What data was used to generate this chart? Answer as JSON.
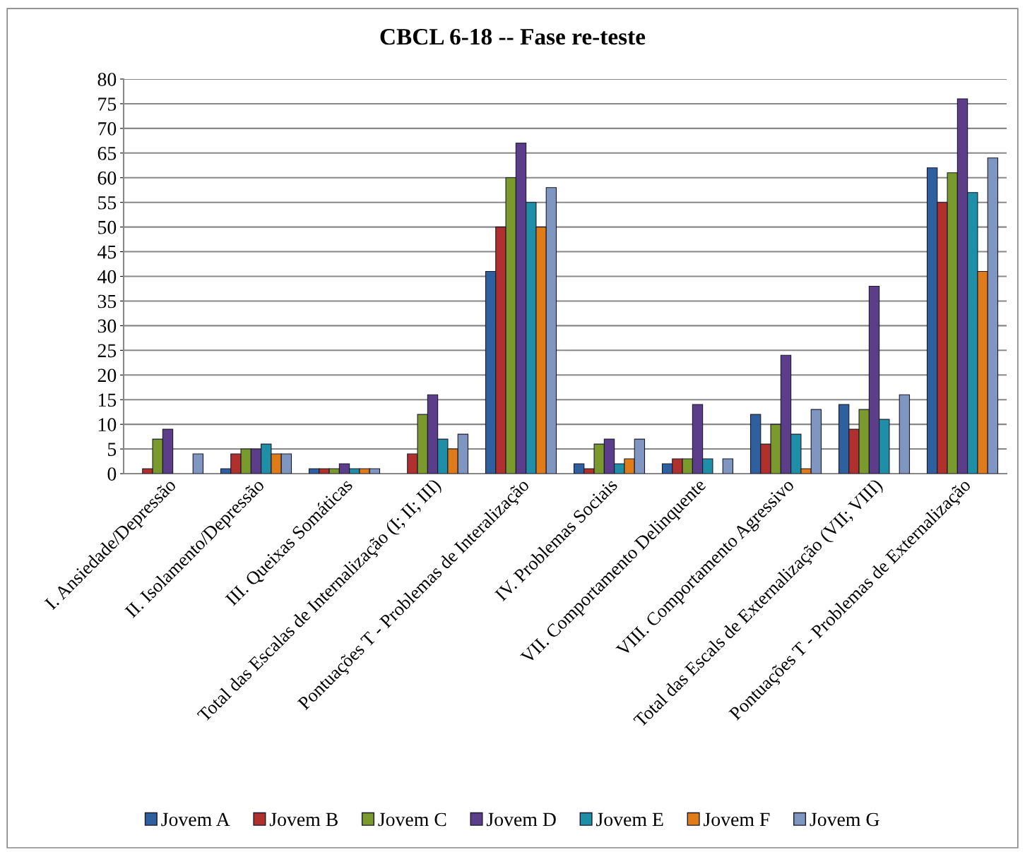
{
  "chart_data": {
    "type": "bar",
    "title": "CBCL 6-18 -- Fase re-teste",
    "categories": [
      "I. Ansiedade/Depressão",
      "II. Isolamento/Depressão",
      "III. Queixas Somáticas",
      "Total das Escalas de Internalização (I; II; III)",
      "Pontuações T - Problemas de Interalização",
      "IV. Problemas Sociais",
      "VII. Comportamento Delinquente",
      "VIII. Comportamento Agressivo",
      "Total das Escals de Externalização (VII; VIII)",
      "Pontuações T - Problemas de Externalização"
    ],
    "series": [
      {
        "name": "Jovem A",
        "color": "#2e5f9e",
        "values": [
          null,
          1,
          1,
          null,
          41,
          2,
          2,
          12,
          14,
          62
        ]
      },
      {
        "name": "Jovem B",
        "color": "#b0302e",
        "values": [
          1,
          4,
          1,
          4,
          50,
          1,
          3,
          6,
          9,
          55
        ]
      },
      {
        "name": "Jovem C",
        "color": "#7a9a2e",
        "values": [
          7,
          5,
          1,
          12,
          60,
          6,
          3,
          10,
          13,
          61
        ]
      },
      {
        "name": "Jovem D",
        "color": "#5c3d8a",
        "values": [
          9,
          5,
          2,
          16,
          67,
          7,
          14,
          24,
          38,
          76
        ]
      },
      {
        "name": "Jovem E",
        "color": "#1f8fa8",
        "values": [
          null,
          6,
          1,
          7,
          55,
          2,
          3,
          8,
          11,
          57
        ]
      },
      {
        "name": "Jovem F",
        "color": "#e07b1a",
        "values": [
          null,
          4,
          1,
          5,
          50,
          3,
          null,
          1,
          null,
          41
        ]
      },
      {
        "name": "Jovem G",
        "color": "#7f96c0",
        "values": [
          4,
          4,
          1,
          8,
          58,
          7,
          3,
          13,
          16,
          64
        ]
      }
    ],
    "ylim": [
      0,
      80
    ],
    "yticks": [
      0,
      5,
      10,
      15,
      20,
      25,
      30,
      35,
      40,
      45,
      50,
      55,
      60,
      65,
      70,
      75,
      80
    ],
    "grid": "y",
    "legend": "bottom"
  }
}
